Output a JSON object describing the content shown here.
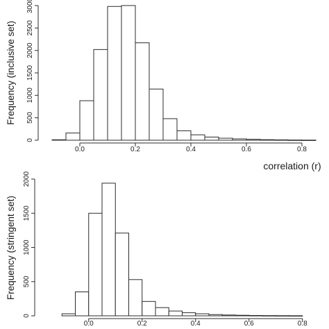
{
  "chart_data": [
    {
      "type": "bar",
      "ylabel": "Frequency (inclusive set)",
      "xlabel": "correlation (r)",
      "bin_width": 0.05,
      "bins": [
        {
          "x0": -0.1,
          "x1": -0.05,
          "count": 10
        },
        {
          "x0": -0.05,
          "x1": 0.0,
          "count": 160
        },
        {
          "x0": 0.0,
          "x1": 0.05,
          "count": 880
        },
        {
          "x0": 0.05,
          "x1": 0.1,
          "count": 2020
        },
        {
          "x0": 0.1,
          "x1": 0.15,
          "count": 2980
        },
        {
          "x0": 0.15,
          "x1": 0.2,
          "count": 3000
        },
        {
          "x0": 0.2,
          "x1": 0.25,
          "count": 2170
        },
        {
          "x0": 0.25,
          "x1": 0.3,
          "count": 1140
        },
        {
          "x0": 0.3,
          "x1": 0.35,
          "count": 480
        },
        {
          "x0": 0.35,
          "x1": 0.4,
          "count": 210
        },
        {
          "x0": 0.4,
          "x1": 0.45,
          "count": 120
        },
        {
          "x0": 0.45,
          "x1": 0.5,
          "count": 70
        },
        {
          "x0": 0.5,
          "x1": 0.55,
          "count": 45
        },
        {
          "x0": 0.55,
          "x1": 0.6,
          "count": 30
        },
        {
          "x0": 0.6,
          "x1": 0.65,
          "count": 20
        },
        {
          "x0": 0.65,
          "x1": 0.7,
          "count": 12
        },
        {
          "x0": 0.7,
          "x1": 0.75,
          "count": 8
        },
        {
          "x0": 0.75,
          "x1": 0.8,
          "count": 4
        },
        {
          "x0": 0.8,
          "x1": 0.85,
          "count": 2
        }
      ],
      "x_ticks": [
        "0.0",
        "0.2",
        "0.4",
        "0.6",
        "0.8"
      ],
      "y_ticks": [
        "0",
        "500",
        "1000",
        "1500",
        "2000",
        "2500",
        "3000"
      ],
      "xlim": [
        -0.1,
        0.85
      ],
      "ylim": [
        0,
        3000
      ]
    },
    {
      "type": "bar",
      "ylabel": "Frequency (stringent set)",
      "xlabel": "",
      "bin_width": 0.05,
      "bins": [
        {
          "x0": -0.1,
          "x1": -0.05,
          "count": 30
        },
        {
          "x0": -0.05,
          "x1": 0.0,
          "count": 350
        },
        {
          "x0": 0.0,
          "x1": 0.05,
          "count": 1500
        },
        {
          "x0": 0.05,
          "x1": 0.1,
          "count": 1940
        },
        {
          "x0": 0.1,
          "x1": 0.15,
          "count": 1210
        },
        {
          "x0": 0.15,
          "x1": 0.2,
          "count": 530
        },
        {
          "x0": 0.2,
          "x1": 0.25,
          "count": 210
        },
        {
          "x0": 0.25,
          "x1": 0.3,
          "count": 120
        },
        {
          "x0": 0.3,
          "x1": 0.35,
          "count": 70
        },
        {
          "x0": 0.35,
          "x1": 0.4,
          "count": 45
        },
        {
          "x0": 0.4,
          "x1": 0.45,
          "count": 30
        },
        {
          "x0": 0.45,
          "x1": 0.5,
          "count": 18
        },
        {
          "x0": 0.5,
          "x1": 0.55,
          "count": 12
        },
        {
          "x0": 0.55,
          "x1": 0.6,
          "count": 8
        },
        {
          "x0": 0.6,
          "x1": 0.65,
          "count": 5
        },
        {
          "x0": 0.65,
          "x1": 0.7,
          "count": 3
        },
        {
          "x0": 0.7,
          "x1": 0.75,
          "count": 2
        },
        {
          "x0": 0.75,
          "x1": 0.8,
          "count": 1
        }
      ],
      "x_ticks": [
        "0.0",
        "0.2",
        "0.4",
        "0.6",
        "0.8"
      ],
      "y_ticks": [
        "0",
        "500",
        "1000",
        "1500",
        "2000"
      ],
      "xlim": [
        -0.15,
        0.85
      ],
      "ylim": [
        0,
        2000
      ]
    }
  ]
}
